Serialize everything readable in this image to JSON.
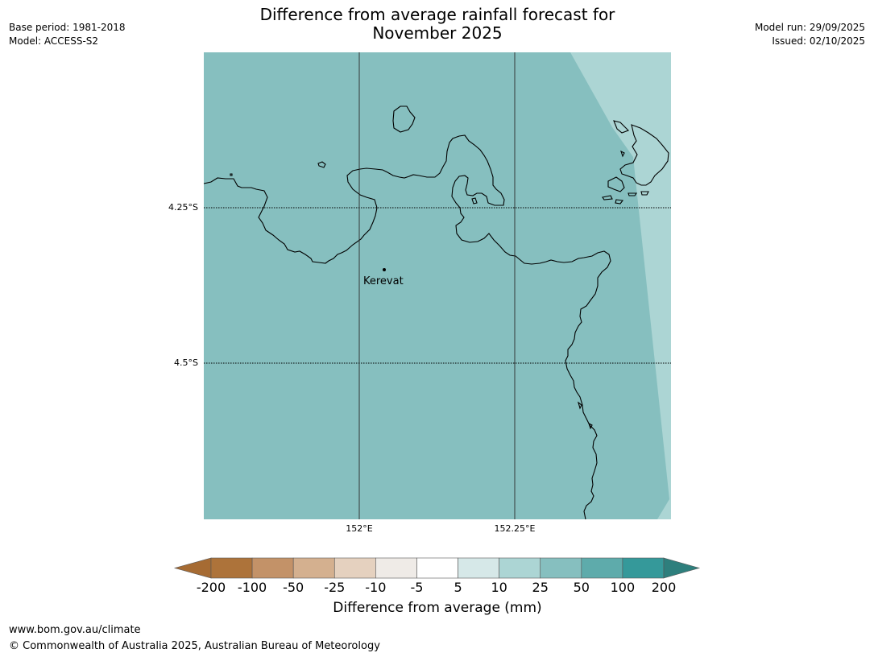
{
  "header": {
    "base_period": "Base period: 1981-2018",
    "model": "Model: ACCESS-S2",
    "title_line1": "Difference from average rainfall forecast for",
    "title_line2": "November 2025",
    "model_run": "Model run: 29/09/2025",
    "issued": "Issued: 02/10/2025"
  },
  "map": {
    "lat_labels": [
      "4.25°S",
      "4.5°S"
    ],
    "lon_labels": [
      "152°E",
      "152.25°E"
    ],
    "place": "Kerevat",
    "colors": {
      "band_25_50": "#86bfbf",
      "band_10_25": "#acd5d4",
      "coast": "#000000",
      "grid": "#2b2b2b"
    }
  },
  "legend": {
    "title": "Difference from average (mm)",
    "ticks": [
      "-200",
      "-100",
      "-50",
      "-25",
      "-10",
      "-5",
      "5",
      "10",
      "25",
      "50",
      "100",
      "200"
    ],
    "colors": [
      "#a66b33",
      "#ad733a",
      "#c39268",
      "#d4b08f",
      "#e5d1bf",
      "#efebe7",
      "#ffffff",
      "#d6e8e8",
      "#acd5d4",
      "#86bfbf",
      "#5eabab",
      "#35999a",
      "#2e7f7d"
    ]
  },
  "footer": {
    "url": "www.bom.gov.au/climate",
    "copyright": "© Commonwealth of Australia 2025, Australian Bureau of Meteorology"
  }
}
